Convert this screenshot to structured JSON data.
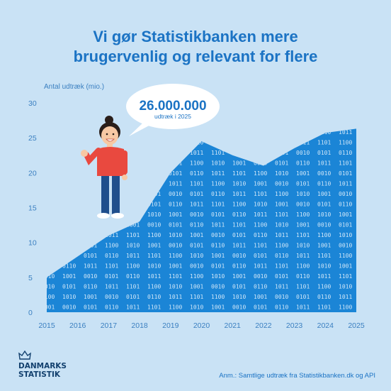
{
  "page": {
    "title_line1": "Vi gør Statistikbanken mere",
    "title_line2": "brugervenlig og relevant for flere",
    "callout_value": "26.000.000",
    "callout_sub": "udtræk i 2025",
    "note": "Anm.: Samtlige udtræk fra Statistikbanken.dk og API",
    "logo_line1": "DANMARKS",
    "logo_line2": "STATISTIK",
    "binary_words": [
      "1010",
      "0101",
      "1101",
      "1001",
      "0110",
      "1100",
      "0010",
      "1011"
    ]
  },
  "colors": {
    "background": "#c9e2f5",
    "area": "#1b85d6",
    "text": "#1b73c4",
    "axis_text": "#3a7fc0",
    "binary": "#cfe6f8",
    "callout_fill": "#ffffff",
    "shirt": "#e9493f",
    "pants": "#1f4e8c",
    "hair": "#2a1e1a",
    "skin": "#f7c8a4"
  },
  "chart_data": {
    "type": "area",
    "title": "Vi gør Statistikbanken mere brugervenlig og relevant for flere",
    "ylabel": "Antal udtræk (mio.)",
    "xlabel": "",
    "x": [
      2015,
      2016,
      2017,
      2018,
      2019,
      2020,
      2021,
      2022,
      2023,
      2024,
      2025
    ],
    "y": [
      5,
      8,
      11,
      13,
      20,
      24.5,
      22.5,
      21,
      23.5,
      25.7,
      26.3
    ],
    "xlim": [
      2015,
      2025
    ],
    "ylim": [
      0,
      30
    ],
    "yticks": [
      0,
      5,
      10,
      15,
      20,
      25,
      30
    ],
    "grid": false,
    "legend": "none",
    "annotations": [
      {
        "x": 2025,
        "text": "26.000.000 udtræk i 2025"
      }
    ]
  }
}
